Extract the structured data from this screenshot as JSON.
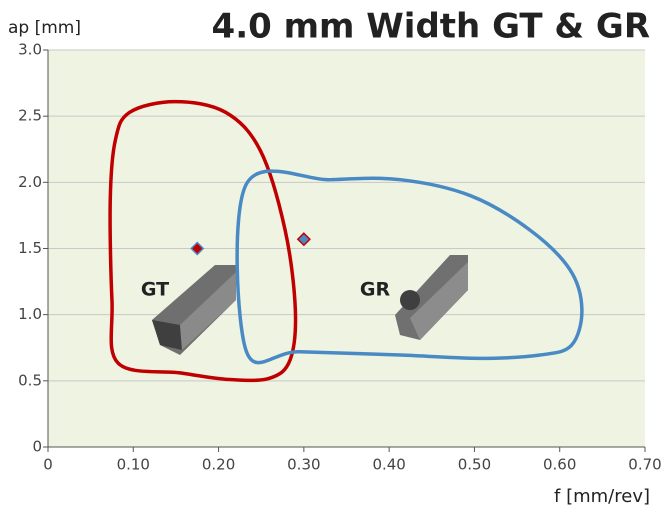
{
  "chart_data": {
    "type": "scatter",
    "title": "4.0 mm Width GT & GR",
    "ylabel": "ap [mm]",
    "xlabel": "f [mm/rev]",
    "xlim": [
      0,
      0.7
    ],
    "ylim": [
      0,
      3.0
    ],
    "xticks": [
      0,
      {
        "value": 0.1,
        "label": "0.10"
      },
      {
        "value": 0.2,
        "label": "0.20"
      },
      {
        "value": 0.3,
        "label": "0.30"
      },
      {
        "value": 0.4,
        "label": "0.40"
      },
      {
        "value": 0.5,
        "label": "0.50"
      },
      {
        "value": 0.6,
        "label": "0.60"
      },
      {
        "value": 0.7,
        "label": "0.70"
      }
    ],
    "yticks": [
      0,
      0.5,
      {
        "value": 1,
        "label": "1.0"
      },
      1.5,
      {
        "value": 2,
        "label": "2.0"
      },
      2.5,
      {
        "value": 3,
        "label": "3.0"
      }
    ],
    "grid": true,
    "series": [
      {
        "name": "GT",
        "color": "#c00000",
        "x": [
          0.082,
          0.075,
          0.073,
          0.079,
          0.096,
          0.149,
          0.208,
          0.249,
          0.278,
          0.29,
          0.284,
          0.26,
          0.213,
          0.155
        ],
        "values": [
          0.635,
          1.11,
          1.87,
          2.32,
          2.53,
          2.61,
          2.53,
          2.24,
          1.64,
          1.04,
          0.66,
          0.52,
          0.51,
          0.56
        ]
      },
      {
        "name": "GR",
        "color": "#4a8ac4",
        "x": [
          0.232,
          0.232,
          0.331,
          0.413,
          0.495,
          0.565,
          0.612,
          0.626,
          0.614,
          0.577,
          0.506,
          0.413,
          0.295
        ],
        "values": [
          0.733,
          1.98,
          2.02,
          2.02,
          1.9,
          1.64,
          1.34,
          1.04,
          0.77,
          0.695,
          0.67,
          0.695,
          0.72
        ]
      }
    ],
    "points": {
      "x": [
        0.175,
        0.3
      ],
      "values": [
        1.5,
        1.57
      ],
      "fill_colors": [
        "#c00000",
        "#4a8ac4"
      ],
      "edge_colors": [
        "#4a8ac4",
        "#c00000"
      ]
    }
  }
}
